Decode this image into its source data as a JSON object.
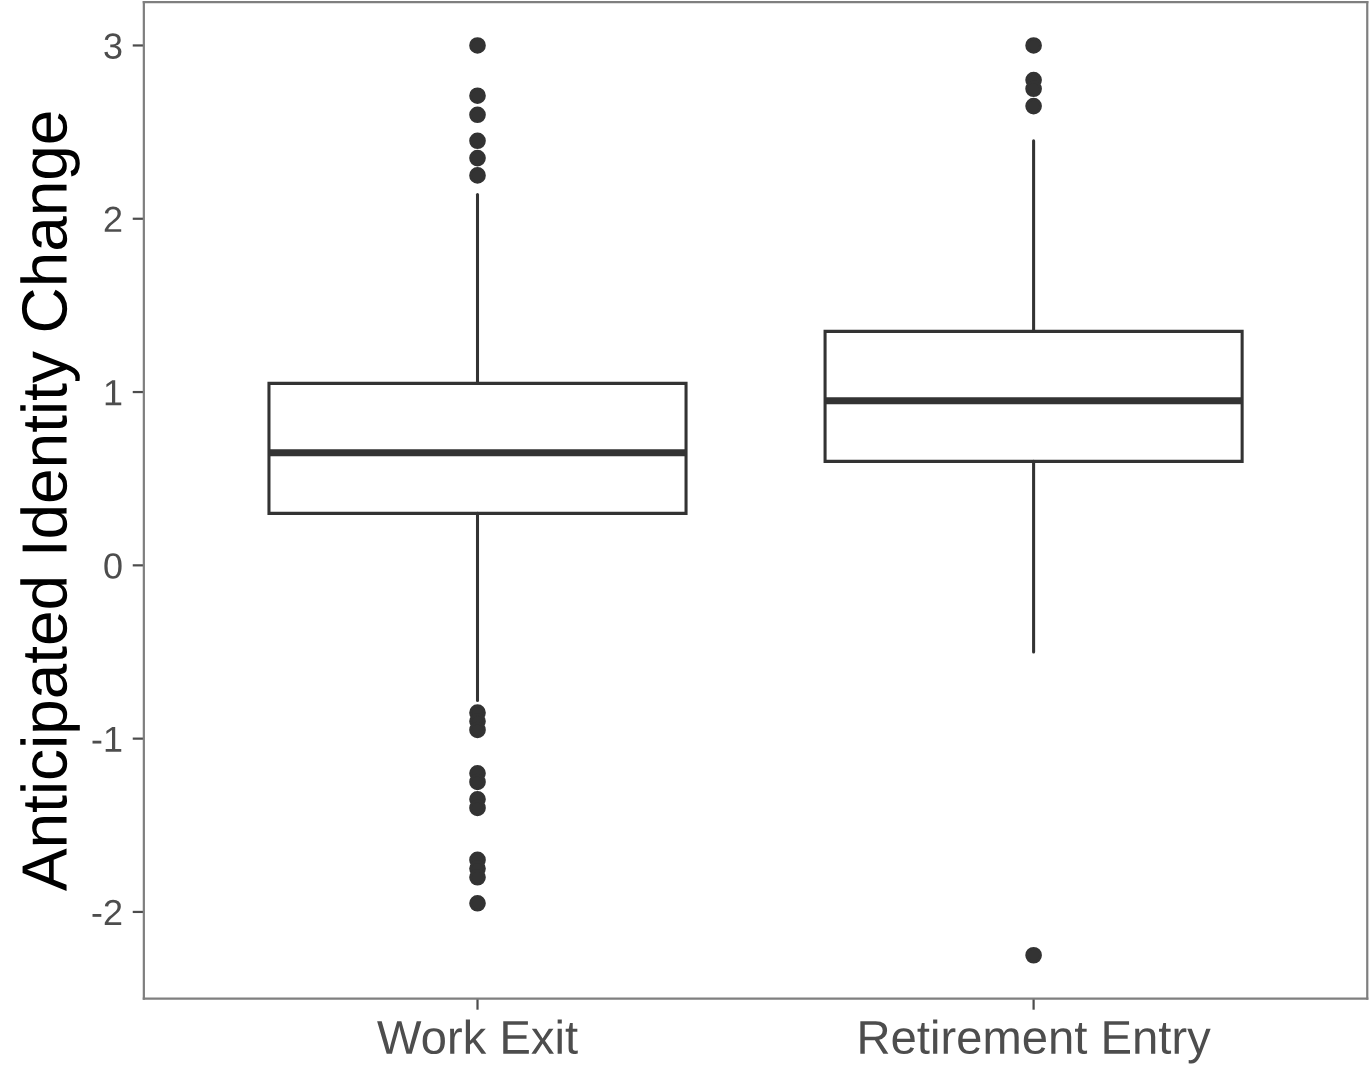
{
  "chart_data": {
    "type": "box",
    "ylabel": "Anticipated Identity Change",
    "categories": [
      "Work Exit",
      "Retirement Entry"
    ],
    "boxes": [
      {
        "low": -0.78,
        "q1": 0.3,
        "median": 0.65,
        "q3": 1.05,
        "high": 2.14,
        "outliers": [
          3.0,
          2.71,
          2.6,
          2.45,
          2.35,
          2.25,
          -0.85,
          -0.9,
          -0.95,
          -1.2,
          -1.25,
          -1.35,
          -1.4,
          -1.7,
          -1.75,
          -1.8,
          -1.95
        ]
      },
      {
        "low": -0.5,
        "q1": 0.6,
        "median": 0.95,
        "q3": 1.35,
        "high": 2.45,
        "outliers": [
          3.0,
          2.8,
          2.75,
          2.65,
          -2.25
        ]
      }
    ],
    "ylim": [
      -2.5,
      3.25
    ],
    "yticks": [
      -2,
      -1,
      0,
      1,
      2,
      3
    ],
    "grid": false
  }
}
